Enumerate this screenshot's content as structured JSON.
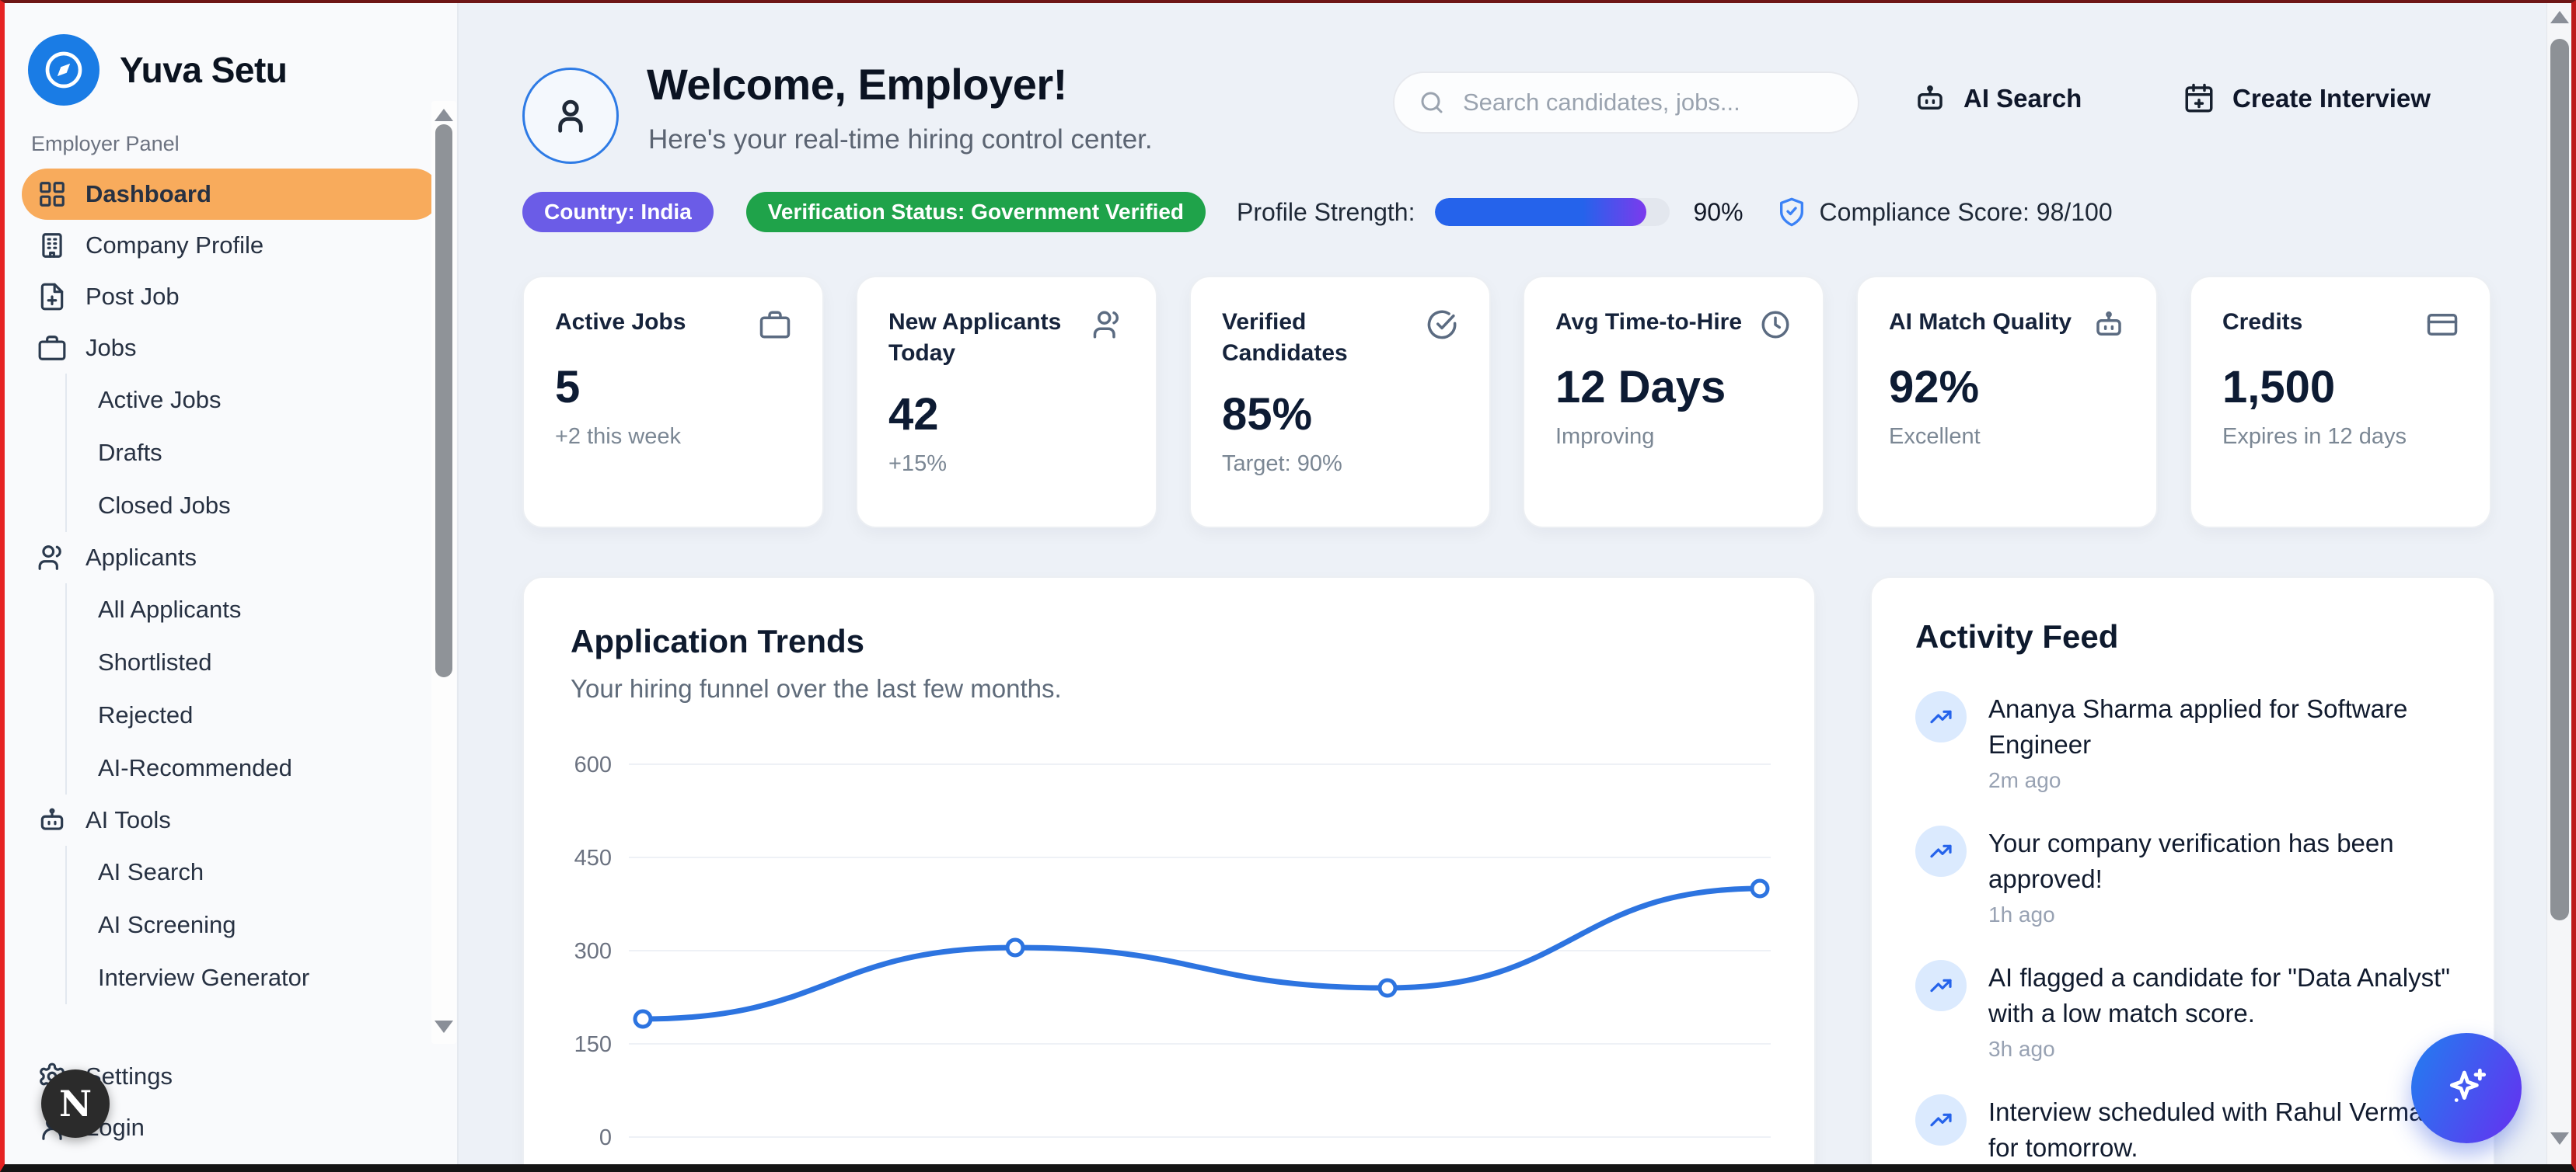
{
  "app": {
    "name": "Yuva Setu",
    "panel_label": "Employer Panel",
    "avatar_bubble_letter": "N"
  },
  "colors": {
    "active_item_orange": "#f8ab5c",
    "logo_blue": "#1a7ce5",
    "country_pill_purple": "#6b5ce7",
    "verified_pill_green": "#1fa34a",
    "progress_blue": "#2563eb",
    "progress_purple_tip": "#7c3aed",
    "chart_line_blue": "#2d74e0",
    "feed_icon_blue": "#2563eb",
    "fab_gradient": [
      "#2b73f0",
      "#5c3bf0"
    ]
  },
  "sidebar": {
    "items": [
      {
        "label": "Dashboard",
        "icon": "grid",
        "active": true
      },
      {
        "label": "Company Profile",
        "icon": "building"
      },
      {
        "label": "Post Job",
        "icon": "file-plus"
      },
      {
        "label": "Jobs",
        "icon": "briefcase"
      },
      {
        "label": "Active Jobs",
        "indent": true
      },
      {
        "label": "Drafts",
        "indent": true
      },
      {
        "label": "Closed Jobs",
        "indent": true
      },
      {
        "label": "Applicants",
        "icon": "users"
      },
      {
        "label": "All Applicants",
        "indent": true
      },
      {
        "label": "Shortlisted",
        "indent": true
      },
      {
        "label": "Rejected",
        "indent": true
      },
      {
        "label": "AI-Recommended",
        "indent": true
      },
      {
        "label": "AI Tools",
        "icon": "bot"
      },
      {
        "label": "AI Search",
        "indent": true
      },
      {
        "label": "AI Screening",
        "indent": true
      },
      {
        "label": "Interview Generator",
        "indent": true
      }
    ],
    "footer_items": [
      {
        "label": "Settings",
        "icon": "gear"
      },
      {
        "label": "Login",
        "icon": "user"
      }
    ]
  },
  "header": {
    "welcome_title": "Welcome, Employer!",
    "welcome_subtitle": "Here's your real-time hiring control center.",
    "search_placeholder": "Search candidates, jobs...",
    "actions": [
      {
        "label": "AI Search",
        "icon": "bot"
      },
      {
        "label": "Create Interview",
        "icon": "calendar-plus"
      }
    ],
    "badges": {
      "country": "Country: India",
      "verification": "Verification Status: Government Verified",
      "profile_strength_label": "Profile Strength:",
      "profile_strength_pct": 90,
      "profile_strength_value": "90%",
      "compliance": "Compliance Score: 98/100"
    }
  },
  "stat_cards": [
    {
      "title": "Active Jobs",
      "icon": "briefcase",
      "value": "5",
      "sub": "+2 this week"
    },
    {
      "title": "New Applicants Today",
      "icon": "users",
      "value": "42",
      "sub": "+15%"
    },
    {
      "title": "Verified Candidates",
      "icon": "check-circle",
      "value": "85%",
      "sub": "Target: 90%"
    },
    {
      "title": "Avg Time-to-Hire",
      "icon": "clock",
      "value": "12 Days",
      "sub": "Improving"
    },
    {
      "title": "AI Match Quality",
      "icon": "bot",
      "value": "92%",
      "sub": "Excellent"
    },
    {
      "title": "Credits",
      "icon": "credit-card",
      "value": "1,500",
      "sub": "Expires in 12 days"
    }
  ],
  "chart_data": {
    "type": "line",
    "title": "Application Trends",
    "subtitle": "Your hiring funnel over the last few months.",
    "categories": [
      "",
      "",
      "",
      ""
    ],
    "series": [
      {
        "name": "Applications",
        "values": [
          190,
          305,
          240,
          400
        ]
      }
    ],
    "yticks": [
      0,
      150,
      300,
      450,
      600
    ],
    "ylim": [
      0,
      600
    ],
    "grid": true,
    "legend": false,
    "line_color": "#2d74e0",
    "marker": "white circle with blue ring",
    "note_xlabels": "x-axis labels cut off at bottom of viewport"
  },
  "activity_feed": {
    "title": "Activity Feed",
    "items": [
      {
        "text": "Ananya Sharma applied for Software Engineer",
        "time": "2m ago"
      },
      {
        "text": "Your company verification has been approved!",
        "time": "1h ago"
      },
      {
        "text": "AI flagged a candidate for \"Data Analyst\" with a low match score.",
        "time": "3h ago"
      },
      {
        "text": "Interview scheduled with Rahul Verma for tomorrow.",
        "time": ""
      }
    ]
  }
}
